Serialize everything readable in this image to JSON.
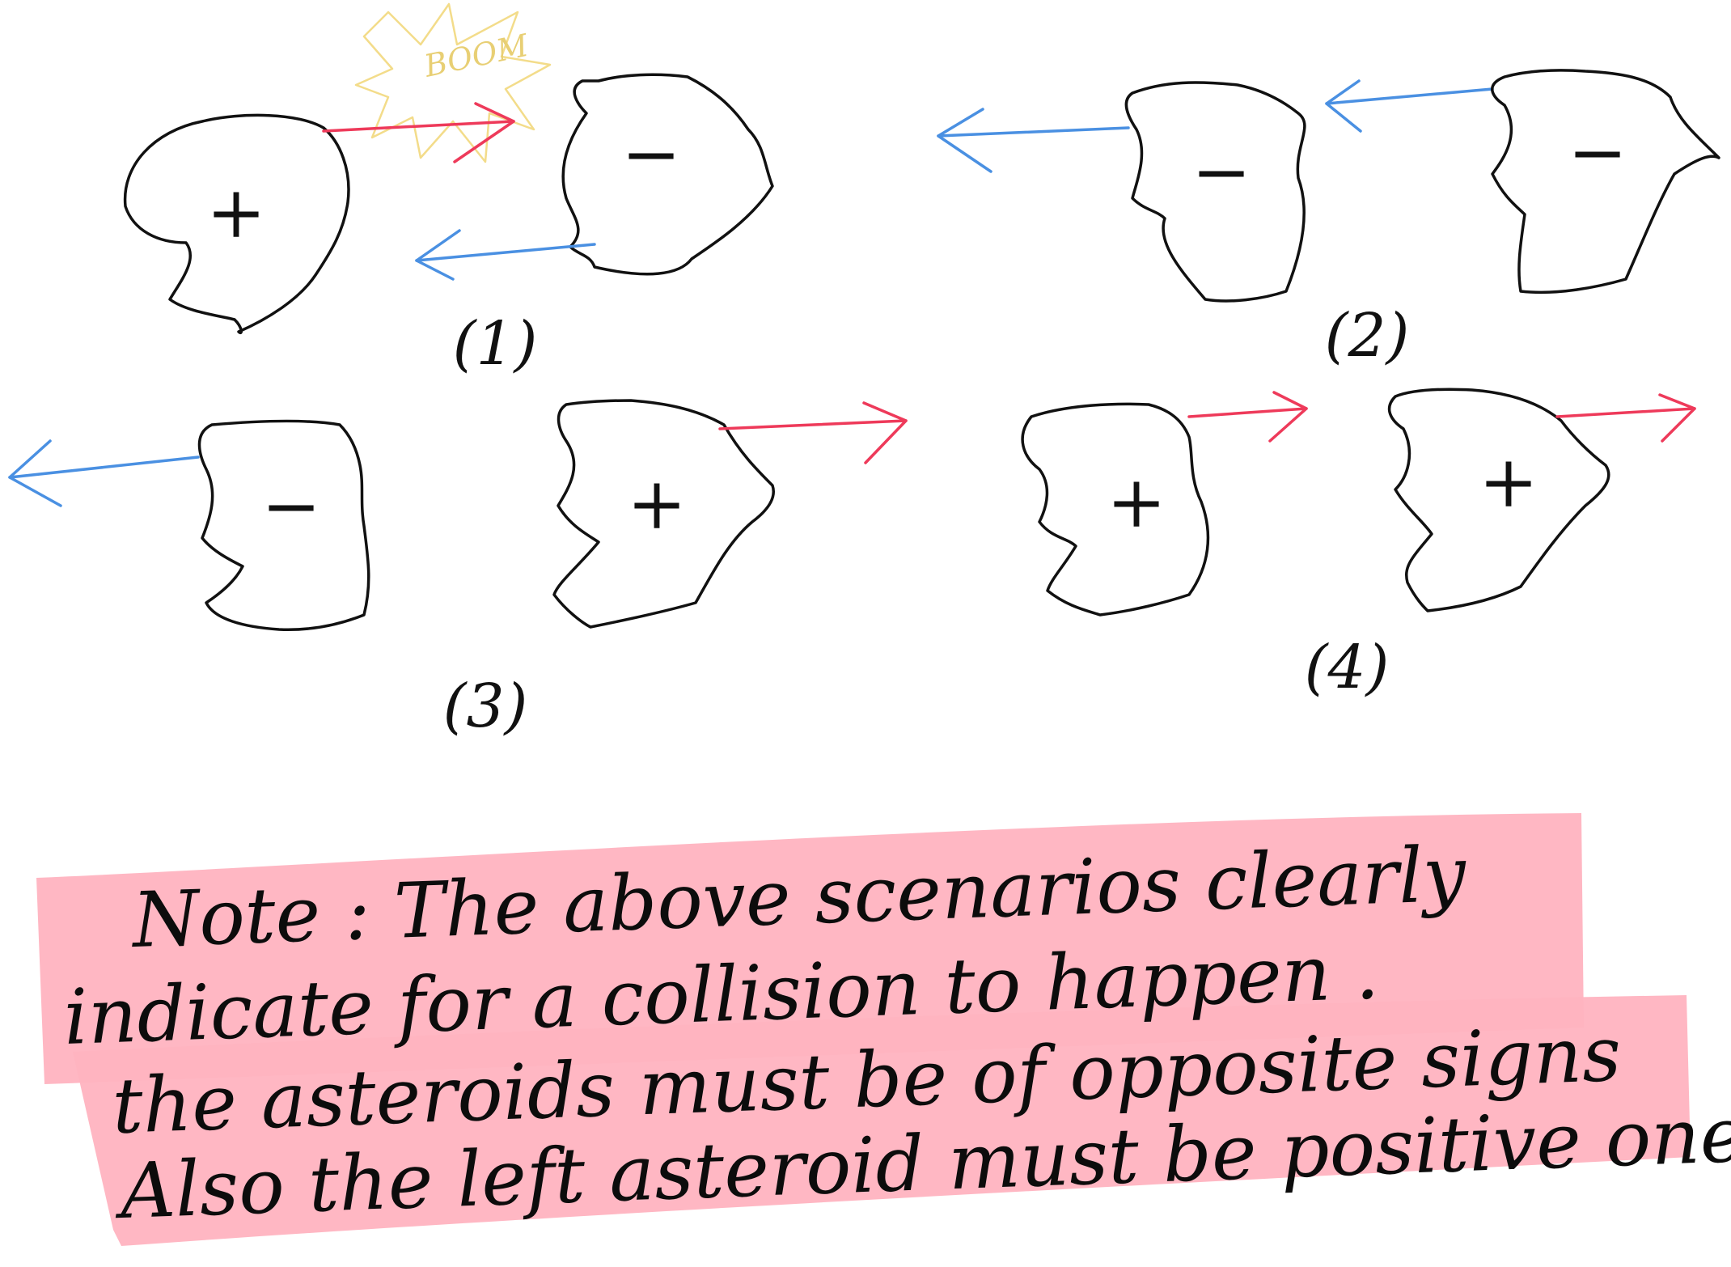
{
  "colors": {
    "ink": "#111111",
    "right_arrow": "#ee3a5a",
    "left_arrow": "#4a90e2",
    "boom": "#f3dc8a",
    "highlight": "#ffb3c0"
  },
  "boom_text": "BOOM",
  "scenarios": [
    {
      "label": "(1)",
      "asteroids": [
        {
          "sign": "+",
          "direction": "right"
        },
        {
          "sign": "−",
          "direction": "left"
        }
      ],
      "collision": true
    },
    {
      "label": "(2)",
      "asteroids": [
        {
          "sign": "−",
          "direction": "left"
        },
        {
          "sign": "−",
          "direction": "left"
        }
      ],
      "collision": false
    },
    {
      "label": "(3)",
      "asteroids": [
        {
          "sign": "−",
          "direction": "left"
        },
        {
          "sign": "+",
          "direction": "right"
        }
      ],
      "collision": false
    },
    {
      "label": "(4)",
      "asteroids": [
        {
          "sign": "+",
          "direction": "right"
        },
        {
          "sign": "+",
          "direction": "right"
        }
      ],
      "collision": false
    }
  ],
  "note_lines": [
    "Note :  The above scenarios clearly",
    "indicate for a collision to happen .",
    "the asteroids must be of opposite signs",
    "Also the left asteroid must be positive one ."
  ]
}
